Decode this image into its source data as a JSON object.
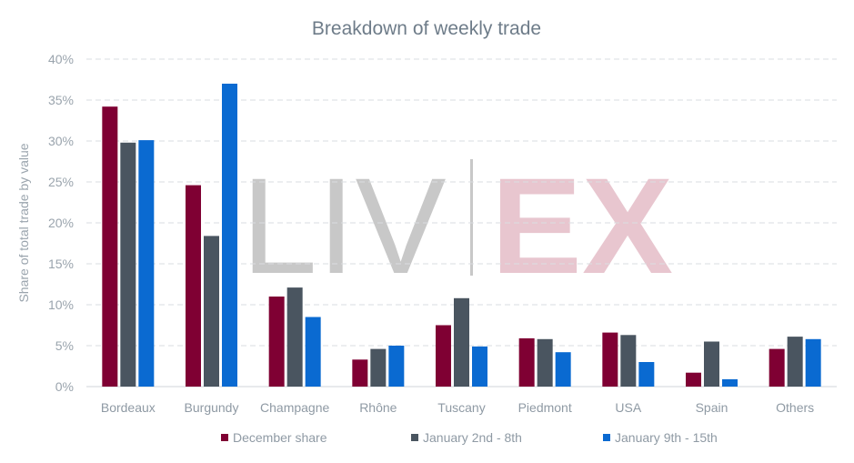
{
  "chart_data": {
    "type": "bar",
    "title": "Breakdown of weekly trade",
    "xlabel": "",
    "ylabel": "Share of total trade by value",
    "ylim": [
      0,
      40
    ],
    "yticks": [
      "0%",
      "5%",
      "10%",
      "15%",
      "20%",
      "25%",
      "30%",
      "35%",
      "40%"
    ],
    "grid": true,
    "legend_position": "bottom",
    "categories": [
      "Bordeaux",
      "Burgundy",
      "Champagne",
      "Rhône",
      "Tuscany",
      "Piedmont",
      "USA",
      "Spain",
      "Others"
    ],
    "series": [
      {
        "name": "December share",
        "color": "#7f0033",
        "values": [
          34.2,
          24.6,
          11.0,
          3.3,
          7.5,
          5.9,
          6.6,
          1.7,
          4.6
        ]
      },
      {
        "name": "January 2nd - 8th",
        "color": "#4a5560",
        "values": [
          29.8,
          18.4,
          12.1,
          4.6,
          10.8,
          5.8,
          6.3,
          5.5,
          6.1
        ]
      },
      {
        "name": "January 9th - 15th",
        "color": "#0a6ad1",
        "values": [
          30.1,
          37.0,
          8.5,
          5.0,
          4.9,
          4.2,
          3.0,
          0.9,
          5.8
        ]
      }
    ]
  },
  "watermark": {
    "left": "LIV",
    "right": "EX"
  }
}
